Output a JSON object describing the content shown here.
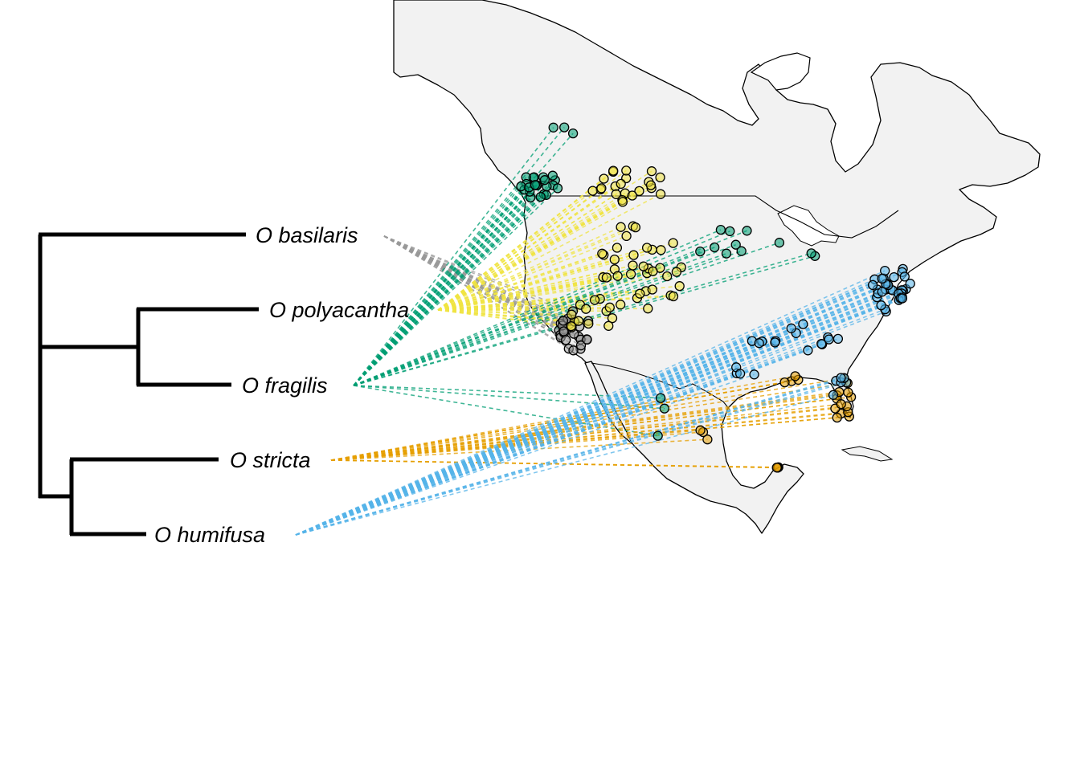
{
  "tree": {
    "tips": [
      {
        "id": "basilaris",
        "label": "O basilaris",
        "color": "#999999"
      },
      {
        "id": "polyacantha",
        "label": "O polyacantha",
        "color": "#F0E442"
      },
      {
        "id": "fragilis",
        "label": "O fragilis",
        "color": "#009E73"
      },
      {
        "id": "stricta",
        "label": "O stricta",
        "color": "#E69F00"
      },
      {
        "id": "humifusa",
        "label": "O humifusa",
        "color": "#56B4E9"
      }
    ],
    "branch_color": "#000000"
  },
  "map": {
    "region": "North America",
    "land_color": "#F2F2F2",
    "outline_color": "#000000"
  }
}
